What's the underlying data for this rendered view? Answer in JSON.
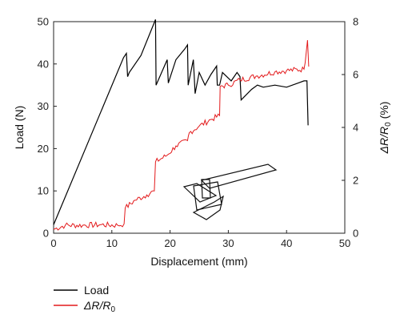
{
  "chart_data": {
    "type": "line",
    "title": "",
    "xlabel": "Displacement (mm)",
    "ylabel_left": "Load (N)",
    "ylabel_right_parts": [
      "ΔR/R",
      "0",
      " (%)"
    ],
    "xlim": [
      0,
      50
    ],
    "ylim_left": [
      0,
      50
    ],
    "ylim_right": [
      0,
      8
    ],
    "x_ticks": [
      "0",
      "10",
      "20",
      "30",
      "40",
      "50"
    ],
    "y_left_ticks": [
      "0",
      "10",
      "20",
      "30",
      "40",
      "50"
    ],
    "y_right_ticks": [
      "0",
      "2",
      "4",
      "6",
      "8"
    ],
    "grid": false,
    "legend_position": "bottom-left, below plot",
    "series": [
      {
        "name": "Load",
        "legend_label": "Load",
        "axis": "left",
        "color": "#000000",
        "points": [
          [
            0,
            2
          ],
          [
            12,
            41.5
          ],
          [
            12.5,
            42.5
          ],
          [
            12.7,
            37
          ],
          [
            13,
            38
          ],
          [
            15,
            42
          ],
          [
            17.5,
            50.5
          ],
          [
            17.6,
            35
          ],
          [
            19.5,
            41
          ],
          [
            19.7,
            35.5
          ],
          [
            21,
            41
          ],
          [
            22.5,
            43.5
          ],
          [
            23,
            44.5
          ],
          [
            23.1,
            35
          ],
          [
            24,
            41
          ],
          [
            24.3,
            33
          ],
          [
            25,
            38
          ],
          [
            26,
            35
          ],
          [
            27,
            37.5
          ],
          [
            28,
            39.5
          ],
          [
            28.1,
            35
          ],
          [
            28.5,
            35
          ],
          [
            29,
            38
          ],
          [
            30.5,
            36
          ],
          [
            31.5,
            38
          ],
          [
            32,
            37
          ],
          [
            32.2,
            31.5
          ],
          [
            34,
            34
          ],
          [
            35,
            35
          ],
          [
            36,
            34.5
          ],
          [
            38,
            35
          ],
          [
            40,
            34.5
          ],
          [
            42,
            35.5
          ],
          [
            43,
            36
          ],
          [
            43.5,
            36
          ],
          [
            43.7,
            25.5
          ]
        ]
      },
      {
        "name": "ΔR/R0",
        "legend_label_parts": [
          "ΔR/R",
          "0"
        ],
        "axis": "right",
        "color": "#e31a1c",
        "points": [
          [
            0,
            0.15
          ],
          [
            2,
            0.3
          ],
          [
            5,
            0.3
          ],
          [
            8,
            0.32
          ],
          [
            11,
            0.3
          ],
          [
            12.1,
            0.35
          ],
          [
            12.3,
            0.95
          ],
          [
            14,
            1.25
          ],
          [
            16,
            1.45
          ],
          [
            17.3,
            1.6
          ],
          [
            17.5,
            2.7
          ],
          [
            19.5,
            2.95
          ],
          [
            21,
            3.3
          ],
          [
            23,
            3.5
          ],
          [
            23.3,
            3.8
          ],
          [
            25,
            4.05
          ],
          [
            27,
            4.3
          ],
          [
            28.5,
            4.45
          ],
          [
            28.6,
            5.55
          ],
          [
            30,
            5.6
          ],
          [
            32,
            5.8
          ],
          [
            35,
            5.95
          ],
          [
            38,
            6.1
          ],
          [
            40,
            6.15
          ],
          [
            43,
            6.2
          ],
          [
            43.4,
            6.9
          ],
          [
            43.6,
            7.3
          ],
          [
            43.8,
            6.3
          ]
        ]
      }
    ],
    "inset": "schematic-specimen"
  }
}
